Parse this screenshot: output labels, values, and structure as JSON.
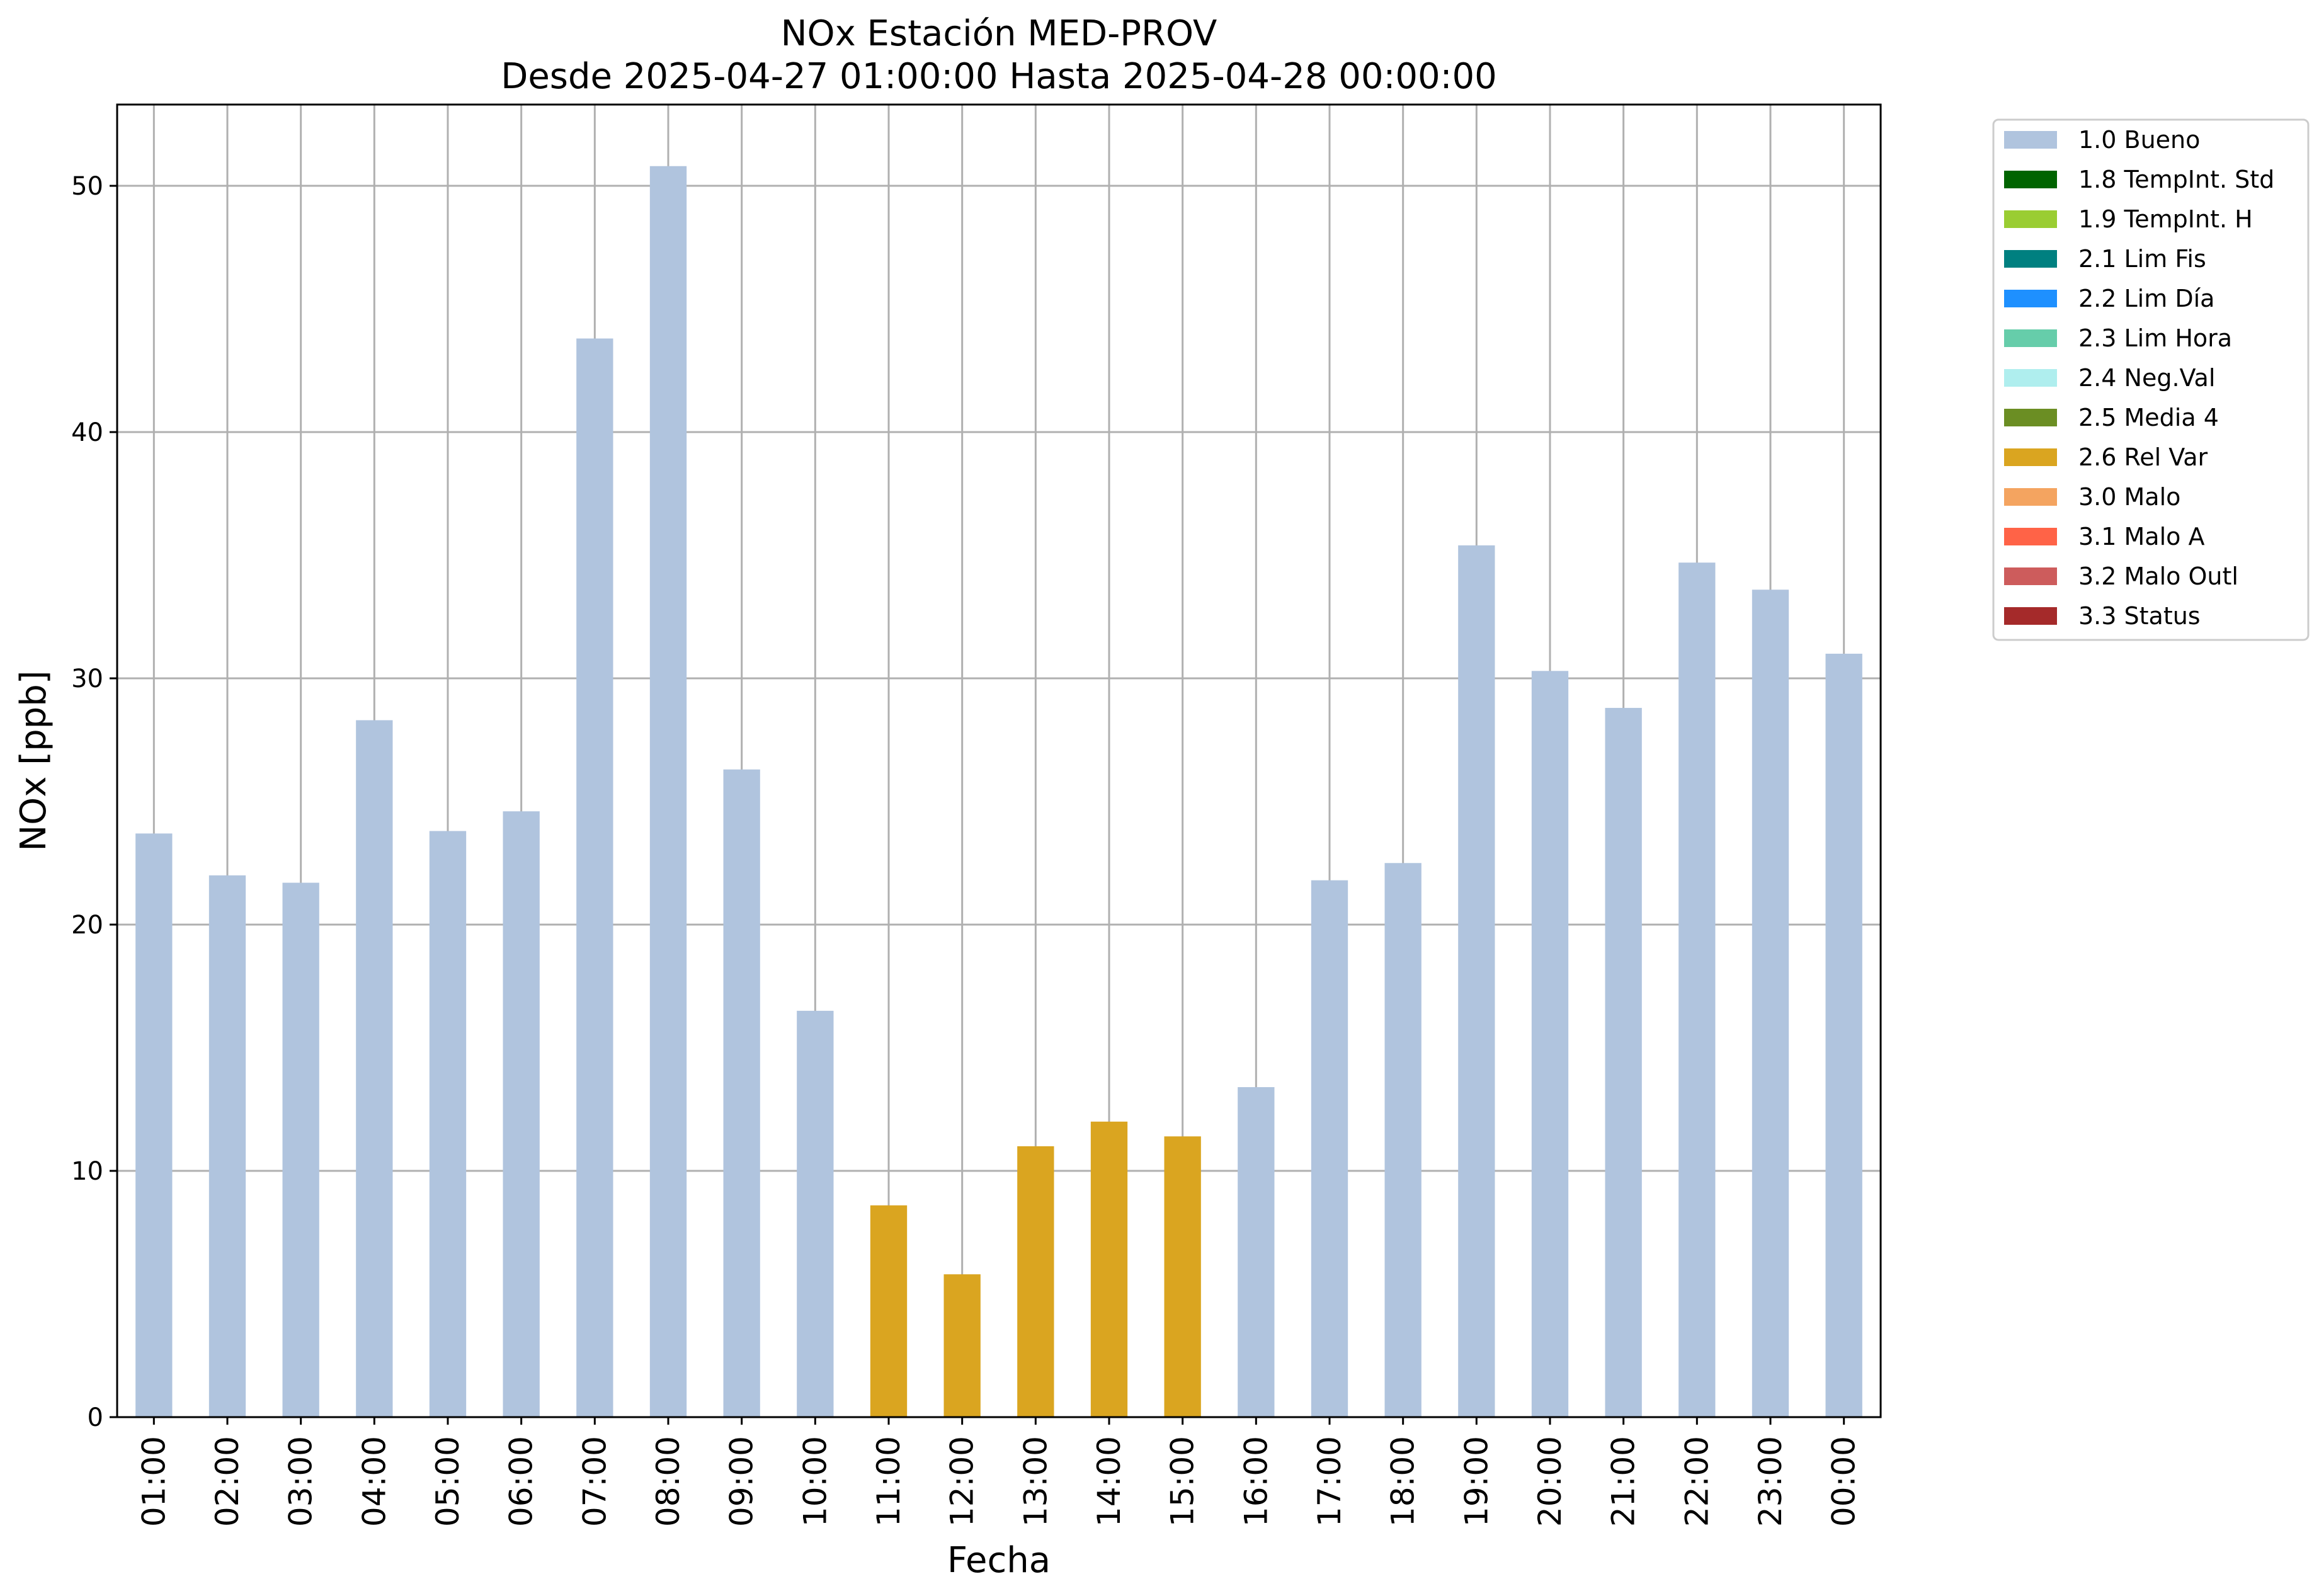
{
  "chart_data": {
    "type": "bar",
    "title": "NOx Estación MED-PROV",
    "subtitle": "Desde 2025-04-27 01:00:00 Hasta 2025-04-28 00:00:00",
    "xlabel": "Fecha",
    "ylabel": "NOx [ppb]",
    "ylim": [
      0,
      53.3
    ],
    "yticks": [
      "0",
      "10",
      "20",
      "30",
      "40",
      "50"
    ],
    "grid": true,
    "legend_placement": "outside-top-right",
    "categories": [
      "01:00",
      "02:00",
      "03:00",
      "04:00",
      "05:00",
      "06:00",
      "07:00",
      "08:00",
      "09:00",
      "10:00",
      "11:00",
      "12:00",
      "13:00",
      "14:00",
      "15:00",
      "16:00",
      "17:00",
      "18:00",
      "19:00",
      "20:00",
      "21:00",
      "22:00",
      "23:00",
      "00:00"
    ],
    "values": [
      23.7,
      22.0,
      21.7,
      28.3,
      23.8,
      24.6,
      43.8,
      50.8,
      26.3,
      16.5,
      8.6,
      5.8,
      11.0,
      12.0,
      11.4,
      13.4,
      21.8,
      22.5,
      35.4,
      30.3,
      28.8,
      34.7,
      33.6,
      31.0
    ],
    "flags": [
      "1.0 Bueno",
      "1.0 Bueno",
      "1.0 Bueno",
      "1.0 Bueno",
      "1.0 Bueno",
      "1.0 Bueno",
      "1.0 Bueno",
      "1.0 Bueno",
      "1.0 Bueno",
      "1.0 Bueno",
      "2.6 Rel Var",
      "2.6 Rel Var",
      "2.6 Rel Var",
      "2.6 Rel Var",
      "2.6 Rel Var",
      "1.0 Bueno",
      "1.0 Bueno",
      "1.0 Bueno",
      "1.0 Bueno",
      "1.0 Bueno",
      "1.0 Bueno",
      "1.0 Bueno",
      "1.0 Bueno",
      "1.0 Bueno"
    ],
    "legend": [
      {
        "label": "1.0 Bueno",
        "color": "#b0c4de"
      },
      {
        "label": "1.8 TempInt. Std",
        "color": "#006400"
      },
      {
        "label": "1.9 TempInt. H",
        "color": "#9acd32"
      },
      {
        "label": "2.1 Lim Fis",
        "color": "#008080"
      },
      {
        "label": "2.2 Lim Día",
        "color": "#1e90ff"
      },
      {
        "label": "2.3 Lim Hora",
        "color": "#66cdaa"
      },
      {
        "label": "2.4 Neg.Val",
        "color": "#afeeee"
      },
      {
        "label": "2.5 Media 4",
        "color": "#6b8e23"
      },
      {
        "label": "2.6 Rel Var",
        "color": "#daa520"
      },
      {
        "label": "3.0 Malo",
        "color": "#f4a460"
      },
      {
        "label": "3.1 Malo A",
        "color": "#ff6347"
      },
      {
        "label": "3.2 Malo Outl",
        "color": "#cd5c5c"
      },
      {
        "label": "3.3 Status",
        "color": "#a52a2a"
      }
    ]
  }
}
